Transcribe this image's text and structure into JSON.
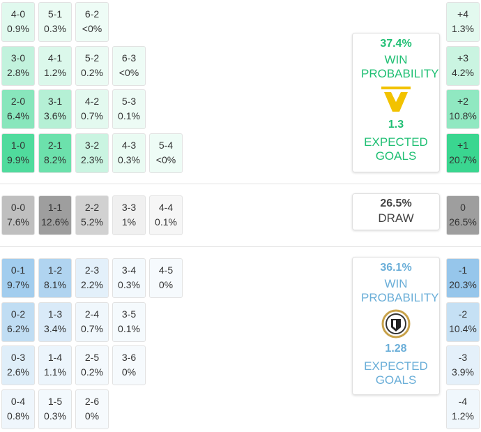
{
  "home": {
    "color": "#2fd48a",
    "text_color": "#1fbf73",
    "grid": [
      [
        {
          "score": "4-0",
          "prob": "0.9%"
        },
        {
          "score": "5-1",
          "prob": "0.3%"
        },
        {
          "score": "6-2",
          "prob": "<0%"
        }
      ],
      [
        {
          "score": "3-0",
          "prob": "2.8%"
        },
        {
          "score": "4-1",
          "prob": "1.2%"
        },
        {
          "score": "5-2",
          "prob": "0.2%"
        },
        {
          "score": "6-3",
          "prob": "<0%"
        }
      ],
      [
        {
          "score": "2-0",
          "prob": "6.4%"
        },
        {
          "score": "3-1",
          "prob": "3.6%"
        },
        {
          "score": "4-2",
          "prob": "0.7%"
        },
        {
          "score": "5-3",
          "prob": "0.1%"
        }
      ],
      [
        {
          "score": "1-0",
          "prob": "9.9%"
        },
        {
          "score": "2-1",
          "prob": "8.2%"
        },
        {
          "score": "3-2",
          "prob": "2.3%"
        },
        {
          "score": "4-3",
          "prob": "0.3%"
        },
        {
          "score": "5-4",
          "prob": "<0%"
        }
      ]
    ],
    "margins": [
      {
        "diff": "+4",
        "prob": "1.3%"
      },
      {
        "diff": "+3",
        "prob": "4.2%"
      },
      {
        "diff": "+2",
        "prob": "10.8%"
      },
      {
        "diff": "+1",
        "prob": "20.7%"
      }
    ],
    "summary": {
      "pct": "37.4%",
      "label": "WIN PROBABILITY",
      "xg": "1.3",
      "xg_label": "EXPECTED GOALS"
    }
  },
  "draw": {
    "color": "#9e9e9e",
    "text_color": "#555555",
    "grid": [
      [
        {
          "score": "0-0",
          "prob": "7.6%"
        },
        {
          "score": "1-1",
          "prob": "12.6%"
        },
        {
          "score": "2-2",
          "prob": "5.2%"
        },
        {
          "score": "3-3",
          "prob": "1%"
        },
        {
          "score": "4-4",
          "prob": "0.1%"
        }
      ]
    ],
    "margins": [
      {
        "diff": "0",
        "prob": "26.5%"
      }
    ],
    "summary": {
      "pct": "26.5%",
      "label": "DRAW"
    }
  },
  "away": {
    "color": "#8ec2ea",
    "text_color": "#6aaed8",
    "grid": [
      [
        {
          "score": "0-1",
          "prob": "9.7%"
        },
        {
          "score": "1-2",
          "prob": "8.1%"
        },
        {
          "score": "2-3",
          "prob": "2.2%"
        },
        {
          "score": "3-4",
          "prob": "0.3%"
        },
        {
          "score": "4-5",
          "prob": "0%"
        }
      ],
      [
        {
          "score": "0-2",
          "prob": "6.2%"
        },
        {
          "score": "1-3",
          "prob": "3.4%"
        },
        {
          "score": "2-4",
          "prob": "0.7%"
        },
        {
          "score": "3-5",
          "prob": "0.1%"
        }
      ],
      [
        {
          "score": "0-3",
          "prob": "2.6%"
        },
        {
          "score": "1-4",
          "prob": "1.1%"
        },
        {
          "score": "2-5",
          "prob": "0.2%"
        },
        {
          "score": "3-6",
          "prob": "0%"
        }
      ],
      [
        {
          "score": "0-4",
          "prob": "0.8%"
        },
        {
          "score": "1-5",
          "prob": "0.3%"
        },
        {
          "score": "2-6",
          "prob": "0%"
        }
      ]
    ],
    "margins": [
      {
        "diff": "-1",
        "prob": "20.3%"
      },
      {
        "diff": "-2",
        "prob": "10.4%"
      },
      {
        "diff": "-3",
        "prob": "3.9%"
      },
      {
        "diff": "-4",
        "prob": "1.2%"
      }
    ],
    "summary": {
      "pct": "36.1%",
      "label": "WIN PROBABILITY",
      "xg": "1.28",
      "xg_label": "EXPECTED GOALS"
    }
  }
}
